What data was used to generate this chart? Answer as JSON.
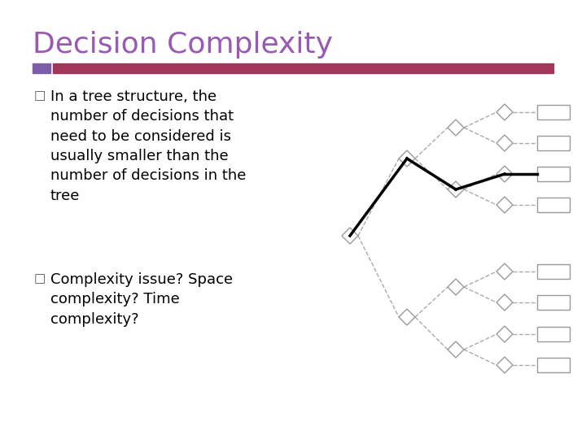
{
  "title": "Decision Complexity",
  "title_color": "#9B59B6",
  "title_fontsize": 26,
  "bg_color": "#FFFFFF",
  "bar1_color": "#7B5EA7",
  "bar2_color": "#A0365A",
  "bullet1_text": "In a tree structure, the\nnumber of decisions that\nneed to be considered is\nusually smaller than the\nnumber of decisions in the\ntree",
  "bullet2_text": "Complexity issue? Space\ncomplexity? Time\ncomplexity?",
  "text_fontsize": 13,
  "text_color": "#000000",
  "highlight_color": "#000000",
  "highlight_lw": 2.5,
  "node_color": "#999999",
  "line_color": "#AAAAAA"
}
